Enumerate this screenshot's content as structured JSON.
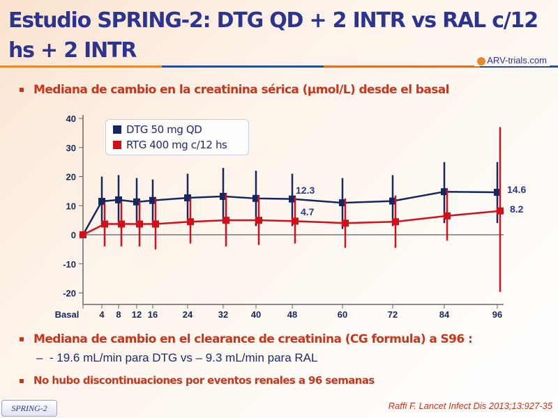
{
  "header": {
    "title": "Estudio SPRING-2: DTG QD + 2 INTR vs RAL c/12 hs + 2 INTR",
    "logo_text": "ARV-trials.com"
  },
  "bullets": {
    "b1": "Mediana de cambio en la creatinina sérica (µmol/L) desde el basal",
    "b2": "Mediana de cambio en el clearance de creatinina (CG formula) a S96 :",
    "b2_sub": "- 19.6 mL/min para DTG vs – 9.3 mL/min para RAL",
    "b3": "No hubo discontinuaciones por eventos renales a 96 semanas"
  },
  "footer": {
    "badge": "SPRING-2",
    "citation": "Raffi F. Lancet Infect Dis 2013;13:927-35"
  },
  "chart_data": {
    "type": "line",
    "categories": [
      "Basal",
      "4",
      "8",
      "12",
      "16",
      "24",
      "32",
      "40",
      "48",
      "60",
      "72",
      "84",
      "96"
    ],
    "ylim": [
      -20,
      40
    ],
    "yticks": [
      "40",
      "30",
      "20",
      "10",
      "0",
      "-10",
      "-20"
    ],
    "series": [
      {
        "name": "DTG 50 mg QD",
        "color": "#14285f",
        "values": [
          0,
          11.5,
          12,
          11.3,
          11.8,
          12.7,
          13.2,
          12.5,
          12.3,
          11,
          11.6,
          14.8,
          14.6
        ],
        "low": [
          0,
          3.5,
          4,
          3.5,
          3.5,
          5,
          4,
          3,
          3,
          2,
          3,
          4,
          4
        ],
        "high": [
          0,
          20,
          20.5,
          19.5,
          19,
          21,
          23,
          22,
          21,
          19.5,
          20.5,
          25,
          25
        ]
      },
      {
        "name": "RTG 400 mg c/12 hs",
        "color": "#d0101a",
        "values": [
          0,
          3.7,
          3.7,
          3.7,
          3.7,
          4.5,
          5,
          5,
          4.7,
          4,
          4.5,
          6.5,
          8.2
        ],
        "low": [
          0,
          -4,
          -4,
          -4,
          -5,
          -3,
          -4,
          -3.5,
          -3,
          -4.5,
          -4.5,
          -2,
          -19.6
        ],
        "high": [
          0,
          11,
          11.5,
          11.5,
          12.5,
          12.5,
          14,
          13.5,
          13,
          12.5,
          13.5,
          15.5,
          37
        ]
      }
    ],
    "annotations": [
      {
        "text": "12.3",
        "series": "DTG 50 mg QD",
        "x": "48"
      },
      {
        "text": "4.7",
        "series": "RTG 400 mg c/12 hs",
        "x": "48"
      },
      {
        "text": "14.6",
        "series": "DTG 50 mg QD",
        "x": "96"
      },
      {
        "text": "8.2",
        "series": "RTG 400 mg c/12 hs",
        "x": "96"
      }
    ],
    "legend": "top-left"
  }
}
